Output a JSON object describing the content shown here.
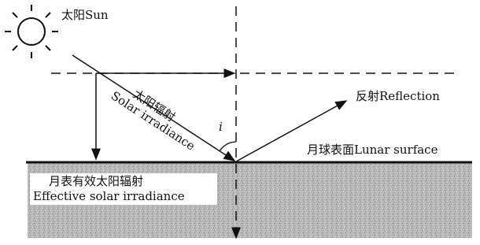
{
  "labels": {
    "sun": "太阳Sun",
    "solar_cn": "太阳辐射",
    "solar_en": "Solar irradiance",
    "angle": "i",
    "reflection": "反射Reflection",
    "surface": "月球表面Lunar surface",
    "effective_cn": "月表有效太阳辐射",
    "effective_en": "Effective solar irradiance"
  }
}
